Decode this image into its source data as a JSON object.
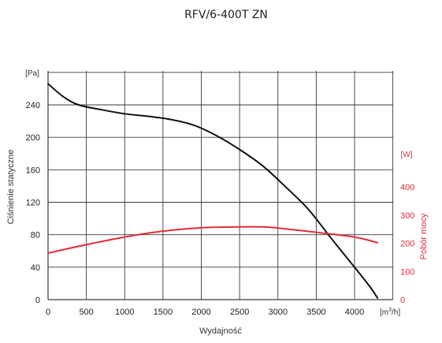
{
  "chart_data": {
    "type": "line",
    "title": "RFV/6-400T ZN",
    "xlabel": "Wydajność",
    "x_unit_prefix": "[m",
    "x_unit_sup": "3",
    "x_unit_suffix": "/h]",
    "ylabel_left": "Ciśnienie statyczne",
    "y_left_unit": "[Pa]",
    "ylabel_right": "Pobór mocy",
    "y_right_unit": "[W]",
    "xlim": [
      0,
      4500
    ],
    "ylim_left": [
      0,
      280
    ],
    "ylim_right": [
      0,
      600
    ],
    "x_ticks": [
      0,
      500,
      1000,
      1500,
      2000,
      2500,
      3000,
      3500,
      4000
    ],
    "x_tick_labels": [
      "0",
      "500",
      "1000",
      "1500",
      "2000",
      "2500",
      "3000",
      "3500",
      "4000"
    ],
    "y_left_ticks": [
      0,
      40,
      80,
      120,
      160,
      200,
      240
    ],
    "y_left_tick_labels": [
      "0",
      "40",
      "80",
      "120",
      "160",
      "200",
      "240"
    ],
    "y_right_ticks": [
      0,
      100,
      200,
      300,
      400
    ],
    "y_right_tick_labels": [
      "0",
      "100",
      "200",
      "300",
      "400"
    ],
    "grid": true,
    "legend": "none",
    "series": [
      {
        "axis": "left",
        "color": "#111111",
        "x": [
          0,
          200,
          400,
          700,
          1000,
          1300,
          1600,
          1900,
          2200,
          2500,
          2800,
          3100,
          3400,
          3700,
          4000,
          4200,
          4300
        ],
        "y": [
          266,
          250,
          240,
          234,
          229,
          226,
          222,
          215,
          202,
          185,
          165,
          139,
          111,
          75,
          40,
          16,
          2
        ]
      },
      {
        "axis": "right",
        "color": "#e32c36",
        "x": [
          0,
          500,
          1000,
          1500,
          2000,
          2500,
          2800,
          3000,
          3500,
          4000,
          4300
        ],
        "y": [
          165,
          195,
          222,
          243,
          255,
          258,
          258,
          254,
          239,
          222,
          202
        ]
      }
    ]
  }
}
